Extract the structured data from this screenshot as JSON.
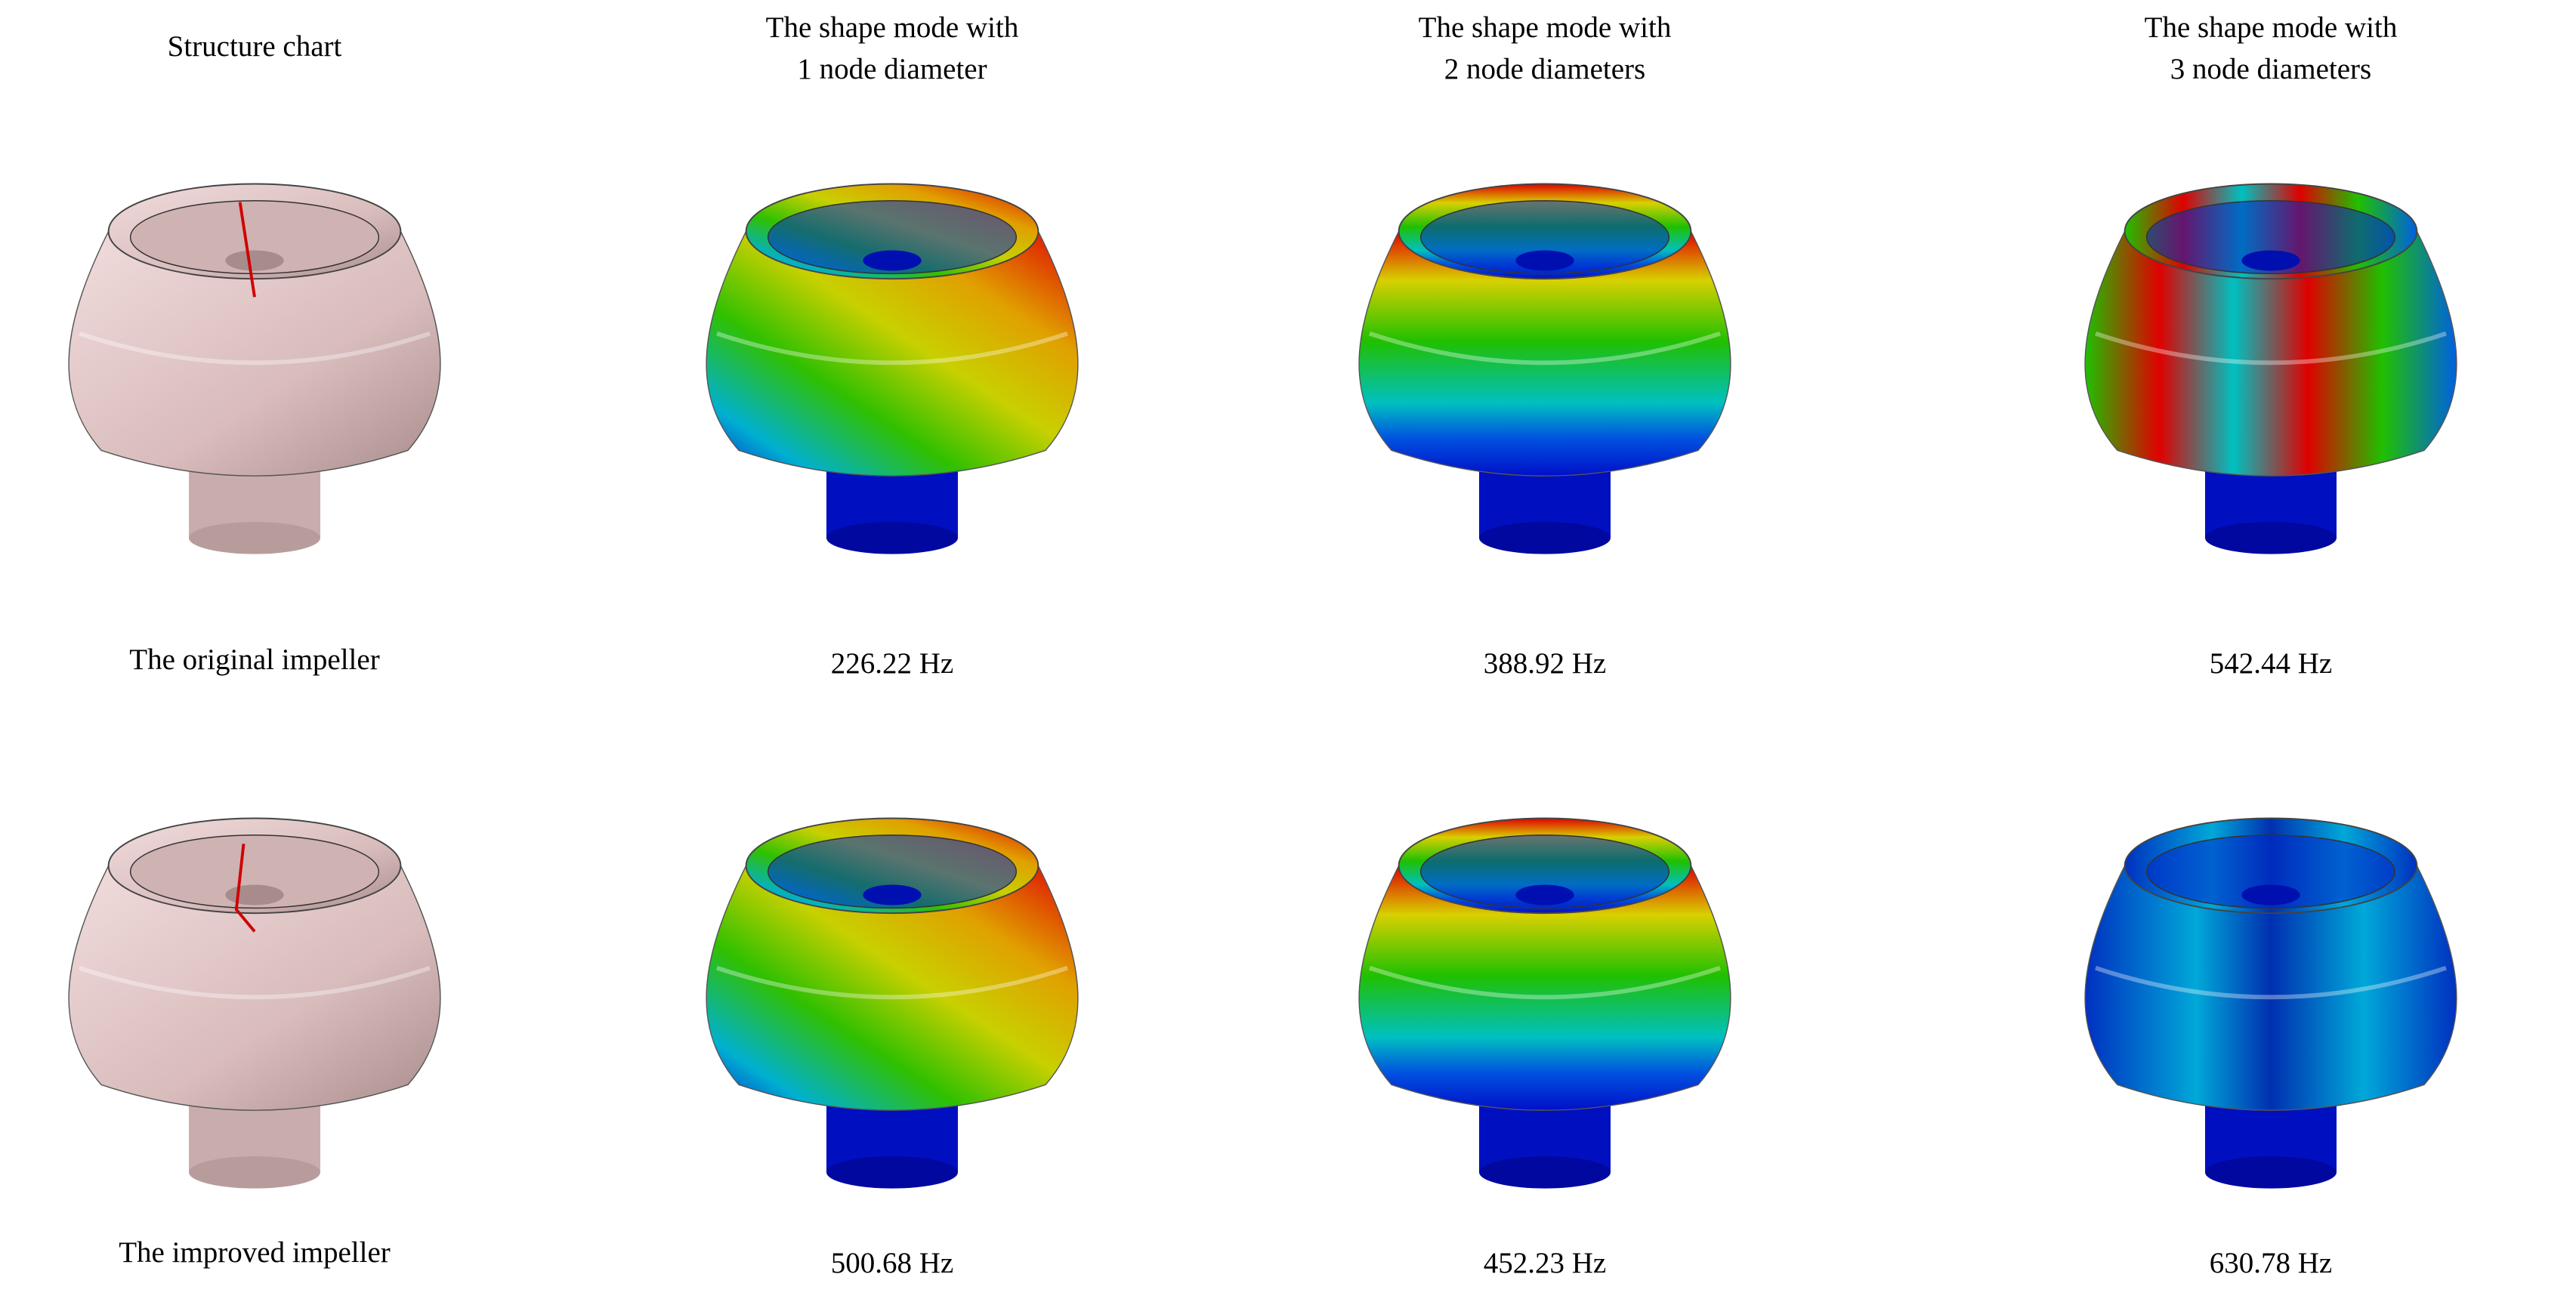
{
  "headers": [
    [
      "Structure chart"
    ],
    [
      "The shape mode with",
      "1 node diameter"
    ],
    [
      "The shape mode with",
      "2 node diameters"
    ],
    [
      "The shape mode with",
      "3 node diameters"
    ]
  ],
  "rows": [
    {
      "label": "The original impeller",
      "frequencies": [
        "226.22 Hz",
        "388.92 Hz",
        "542.44 Hz"
      ]
    },
    {
      "label": "The improved impeller",
      "frequencies": [
        "500.68 Hz",
        "452.23 Hz",
        "630.78 Hz"
      ]
    }
  ]
}
